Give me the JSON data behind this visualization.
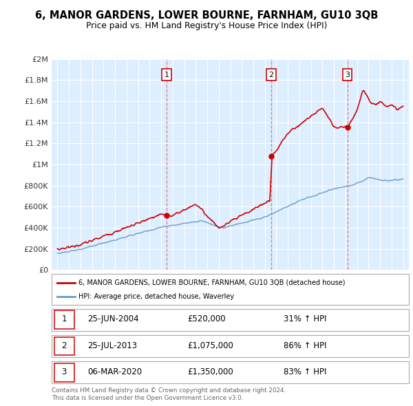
{
  "title": "6, MANOR GARDENS, LOWER BOURNE, FARNHAM, GU10 3QB",
  "subtitle": "Price paid vs. HM Land Registry's House Price Index (HPI)",
  "red_label": "6, MANOR GARDENS, LOWER BOURNE, FARNHAM, GU10 3QB (detached house)",
  "blue_label": "HPI: Average price, detached house, Waverley",
  "sales": [
    {
      "num": 1,
      "date_label": "25-JUN-2004",
      "x": 2004.48,
      "price": 520000,
      "pct": "31% ↑ HPI"
    },
    {
      "num": 2,
      "date_label": "25-JUL-2013",
      "x": 2013.56,
      "price": 1075000,
      "pct": "86% ↑ HPI"
    },
    {
      "num": 3,
      "date_label": "06-MAR-2020",
      "x": 2020.17,
      "price": 1350000,
      "pct": "83% ↑ HPI"
    }
  ],
  "ylim": [
    0,
    2000000
  ],
  "xlim": [
    1994.5,
    2025.5
  ],
  "yticks": [
    0,
    200000,
    400000,
    600000,
    800000,
    1000000,
    1200000,
    1400000,
    1600000,
    1800000,
    2000000
  ],
  "ytick_labels": [
    "£0",
    "£200K",
    "£400K",
    "£600K",
    "£800K",
    "£1M",
    "£1.2M",
    "£1.4M",
    "£1.6M",
    "£1.8M",
    "£2M"
  ],
  "xticks": [
    1995,
    1996,
    1997,
    1998,
    1999,
    2000,
    2001,
    2002,
    2003,
    2004,
    2005,
    2006,
    2007,
    2008,
    2009,
    2010,
    2011,
    2012,
    2013,
    2014,
    2015,
    2016,
    2017,
    2018,
    2019,
    2020,
    2021,
    2022,
    2023,
    2024,
    2025
  ],
  "red_color": "#cc0000",
  "blue_color": "#6699cc",
  "chart_bg": "#ddeeff",
  "dashed_color": "#dd6666",
  "background_color": "#ffffff",
  "grid_color": "#ffffff",
  "footer": "Contains HM Land Registry data © Crown copyright and database right 2024.\nThis data is licensed under the Open Government Licence v3.0."
}
